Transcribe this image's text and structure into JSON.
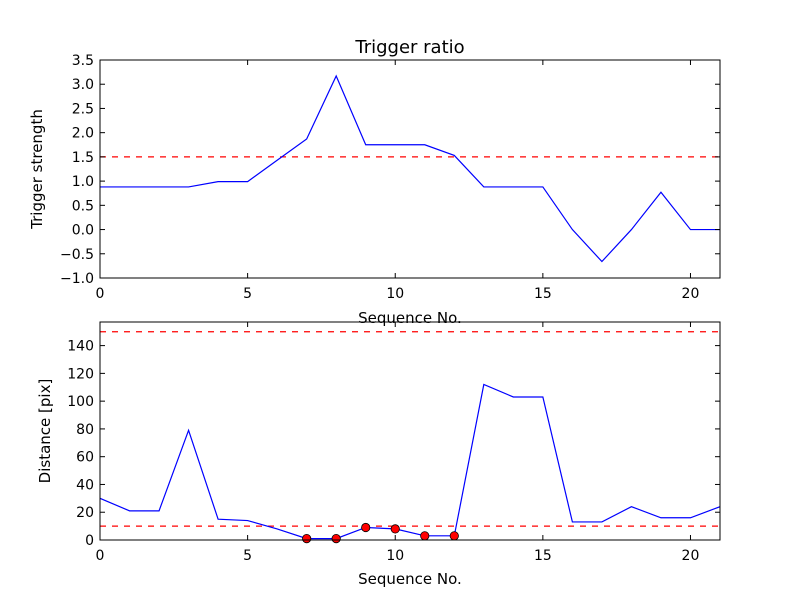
{
  "chart_data": [
    {
      "type": "line",
      "title": "Trigger ratio",
      "xlabel": "Sequence No.",
      "ylabel": "Trigger strength",
      "xlim": [
        0,
        21
      ],
      "ylim": [
        -1.0,
        3.5
      ],
      "xticks": [
        0,
        5,
        10,
        15,
        20
      ],
      "xtick_labels": [
        "0",
        "5",
        "10",
        "15",
        "20"
      ],
      "yticks": [
        -1.0,
        -0.5,
        0.0,
        0.5,
        1.0,
        1.5,
        2.0,
        2.5,
        3.0,
        3.5
      ],
      "ytick_labels": [
        "−1.0",
        "−0.5",
        "0.0",
        "0.5",
        "1.0",
        "1.5",
        "2.0",
        "2.5",
        "3.0",
        "3.5"
      ],
      "grid": false,
      "series": [
        {
          "color": "#0000ff",
          "x": [
            0,
            1,
            2,
            3,
            4,
            5,
            6,
            7,
            8,
            9,
            10,
            11,
            12,
            13,
            14,
            15,
            16,
            17,
            18,
            19,
            20,
            21
          ],
          "y": [
            0.88,
            0.88,
            0.88,
            0.88,
            0.99,
            0.99,
            1.43,
            1.87,
            3.17,
            1.75,
            1.75,
            1.75,
            1.53,
            0.88,
            0.88,
            0.88,
            0.0,
            -0.66,
            0.0,
            0.77,
            0.0,
            0.0
          ]
        }
      ],
      "threshold_lines": [
        {
          "y": 1.5,
          "color": "#ff0000",
          "style": "dashed"
        }
      ]
    },
    {
      "type": "line",
      "title": "",
      "xlabel": "Sequence No.",
      "ylabel": "Distance [pix]",
      "xlim": [
        0,
        21
      ],
      "ylim": [
        0,
        157
      ],
      "xticks": [
        0,
        5,
        10,
        15,
        20
      ],
      "xtick_labels": [
        "0",
        "5",
        "10",
        "15",
        "20"
      ],
      "yticks": [
        0,
        20,
        40,
        60,
        80,
        100,
        120,
        140
      ],
      "ytick_labels": [
        "0",
        "20",
        "40",
        "60",
        "80",
        "100",
        "120",
        "140"
      ],
      "grid": false,
      "series": [
        {
          "color": "#0000ff",
          "x": [
            0,
            1,
            2,
            3,
            4,
            5,
            6,
            7,
            8,
            9,
            10,
            11,
            12,
            13,
            14,
            15,
            16,
            17,
            18,
            19,
            20,
            21
          ],
          "y": [
            30,
            21,
            21,
            79,
            15,
            14,
            8,
            1,
            1,
            9,
            8,
            3,
            3,
            112,
            103,
            103,
            13,
            13,
            24,
            16,
            16,
            24
          ]
        }
      ],
      "markers": {
        "color": "#ff0000",
        "x": [
          7,
          8,
          9,
          10,
          11,
          12
        ],
        "y": [
          1,
          1,
          9,
          8,
          3,
          3
        ]
      },
      "threshold_lines": [
        {
          "y": 150,
          "color": "#ff0000",
          "style": "dashed"
        },
        {
          "y": 10,
          "color": "#ff0000",
          "style": "dashed"
        }
      ]
    }
  ]
}
